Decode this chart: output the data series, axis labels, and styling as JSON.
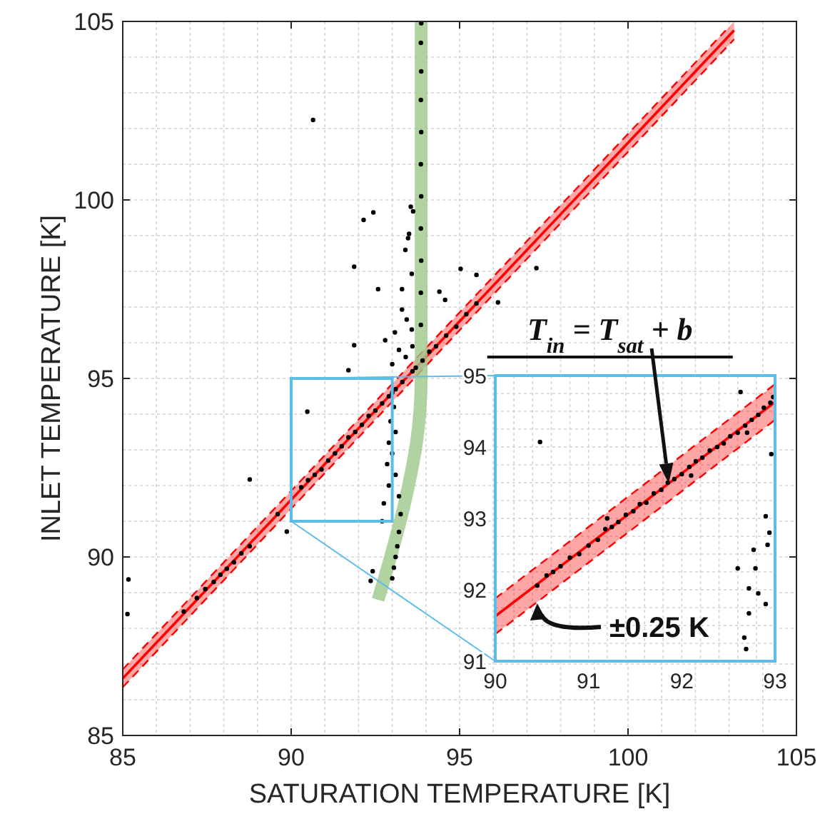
{
  "chart_data": [
    {
      "type": "scatter",
      "xlabel": "SATURATION TEMPERATURE [K]",
      "ylabel": "INLET TEMPERATURE [K]",
      "xlim": [
        85,
        105
      ],
      "ylim": [
        85,
        105
      ],
      "xticks": [
        85,
        {
          "value": 86,
          "label": null
        },
        {
          "value": 87,
          "label": null
        },
        {
          "value": 88,
          "label": null
        },
        {
          "value": 89,
          "label": null
        },
        90,
        {
          "value": 91,
          "label": null
        },
        {
          "value": 92,
          "label": null
        },
        {
          "value": 93,
          "label": null
        },
        {
          "value": 94,
          "label": null
        },
        95,
        {
          "value": 96,
          "label": null
        },
        {
          "value": 97,
          "label": null
        },
        {
          "value": 98,
          "label": null
        },
        {
          "value": 99,
          "label": null
        },
        100,
        {
          "value": 101,
          "label": null
        },
        {
          "value": 102,
          "label": null
        },
        {
          "value": 103,
          "label": null
        },
        {
          "value": 104,
          "label": null
        },
        105
      ],
      "yticks": [
        85,
        {
          "value": 86,
          "label": null
        },
        {
          "value": 87,
          "label": null
        },
        {
          "value": 88,
          "label": null
        },
        {
          "value": 89,
          "label": null
        },
        90,
        {
          "value": 91,
          "label": null
        },
        {
          "value": 92,
          "label": null
        },
        {
          "value": 93,
          "label": null
        },
        {
          "value": 94,
          "label": null
        },
        95,
        {
          "value": 96,
          "label": null
        },
        {
          "value": 97,
          "label": null
        },
        {
          "value": 98,
          "label": null
        },
        {
          "value": 99,
          "label": null
        },
        100,
        {
          "value": 101,
          "label": null
        },
        {
          "value": 102,
          "label": null
        },
        {
          "value": 103,
          "label": null
        },
        {
          "value": 104,
          "label": null
        },
        105
      ],
      "grid": true,
      "marker": "circle",
      "series": [
        {
          "type": "line",
          "color": "#ff0000",
          "marker": "none",
          "x": [
            85,
            103.15
          ],
          "values": [
            86.6,
            104.75
          ],
          "lower": [
            86.35,
            104.5
          ],
          "upper": [
            86.85,
            105
          ]
        },
        {
          "type": "line",
          "color": "#ff0000",
          "marker": "none",
          "line_style": "dashed",
          "x": [
            85,
            103.15
          ],
          "values": [
            86.35,
            104.5
          ]
        },
        {
          "type": "line",
          "color": "#ff0000",
          "marker": "none",
          "line_style": "dashed",
          "x": [
            85,
            102.9
          ],
          "values": [
            86.85,
            104.75
          ]
        },
        {
          "type": "line",
          "color": "#9dc88a",
          "marker": "none",
          "x": [
            92.58,
            92.95,
            93.29,
            93.55,
            93.72,
            93.86,
            93.86
          ],
          "values": [
            88.8,
            90.0,
            91.2,
            92.3,
            93.2,
            95.07,
            105
          ]
        },
        {
          "type": "scatter",
          "color": "#000000",
          "x": [
            86.81,
            87.2,
            87.45,
            87.7,
            87.9,
            88.09,
            88.3,
            88.52,
            88.77,
            89.6,
            90.3,
            90.5,
            90.7,
            90.9,
            91.1,
            91.3,
            91.5,
            91.7,
            91.9,
            92.1,
            92.3,
            92.5,
            92.7,
            92.9,
            93.1,
            93.3,
            93.6,
            93.9,
            94.1,
            94.3,
            94.6,
            94.9,
            95.2,
            95.5,
            97.28,
            85.17,
            85.14,
            88.77,
            89.87,
            90.48,
            90.65,
            91.7,
            91.87,
            91.87,
            92.15,
            92.44,
            92.58,
            92.36,
            92.42,
            95.03,
            95.5,
            94.4,
            94.57,
            96.14,
            93.55,
            93.62,
            93.5,
            93.47,
            93.39,
            93.58,
            93.29,
            93.29,
            93.43,
            93.58,
            92.79,
            93.08,
            93.2,
            93.4,
            93.0,
            93.6,
            93.7,
            93.85,
            93.85,
            93.86,
            93.85,
            93.86,
            93.85,
            93.86,
            93.85,
            93.86,
            93.85,
            93.86,
            93.0,
            93.05,
            92.95,
            93.1,
            92.9,
            93.0,
            92.85,
            93.1,
            92.9,
            93.2,
            92.75,
            93.25,
            92.7,
            93.2,
            93.15,
            93.1,
            93.05,
            93.0
          ],
          "values": [
            88.47,
            88.85,
            89.1,
            89.3,
            89.5,
            89.67,
            89.85,
            90.1,
            90.3,
            91.2,
            91.95,
            92.15,
            92.3,
            92.45,
            92.7,
            92.9,
            93.1,
            93.35,
            93.5,
            93.7,
            93.95,
            94.1,
            94.3,
            94.5,
            94.7,
            94.9,
            95.2,
            95.5,
            95.75,
            95.9,
            96.2,
            96.45,
            96.8,
            97.1,
            98.09,
            89.37,
            88.4,
            92.17,
            90.71,
            94.07,
            102.24,
            95.23,
            95.93,
            98.13,
            99.44,
            99.65,
            97.5,
            89.33,
            89.6,
            98.07,
            97.9,
            97.43,
            97.2,
            97.13,
            99.81,
            99.68,
            99.05,
            98.93,
            98.6,
            97.93,
            97.5,
            96.93,
            96.65,
            96.37,
            96.07,
            96.29,
            95.8,
            95.6,
            95.4,
            95.9,
            95.3,
            96.5,
            97.4,
            98.3,
            99.2,
            100.1,
            101,
            101.9,
            102.8,
            103.6,
            104.4,
            104.95,
            94.6,
            94.2,
            93.8,
            93.5,
            93.2,
            92.9,
            92.6,
            92.3,
            92.0,
            91.7,
            91.5,
            91.2,
            91.0,
            90.7,
            90.3,
            90.0,
            89.7,
            89.4
          ]
        }
      ]
    },
    {
      "type": "scatter",
      "xlim": [
        90,
        93
      ],
      "ylim": [
        91,
        95
      ],
      "xticks": [
        90,
        {
          "value": 90.2,
          "label": null
        },
        {
          "value": 90.4,
          "label": null
        },
        {
          "value": 90.6,
          "label": null
        },
        {
          "value": 90.8,
          "label": null
        },
        91,
        {
          "value": 91.2,
          "label": null
        },
        {
          "value": 91.4,
          "label": null
        },
        {
          "value": 91.6,
          "label": null
        },
        {
          "value": 91.8,
          "label": null
        },
        92,
        {
          "value": 92.2,
          "label": null
        },
        {
          "value": 92.4,
          "label": null
        },
        {
          "value": 92.6,
          "label": null
        },
        {
          "value": 92.8,
          "label": null
        },
        93
      ],
      "yticks": [
        91,
        {
          "value": 91.25,
          "label": null
        },
        {
          "value": 91.5,
          "label": null
        },
        {
          "value": 91.75,
          "label": null
        },
        92,
        {
          "value": 92.25,
          "label": null
        },
        {
          "value": 92.5,
          "label": null
        },
        {
          "value": 92.75,
          "label": null
        },
        93,
        {
          "value": 93.25,
          "label": null
        },
        {
          "value": 93.5,
          "label": null
        },
        {
          "value": 93.75,
          "label": null
        },
        94,
        {
          "value": 94.25,
          "label": null
        },
        {
          "value": 94.5,
          "label": null
        },
        {
          "value": 94.75,
          "label": null
        },
        95
      ],
      "grid": true,
      "marker": "circle",
      "annotations": [
        "T$_{in}$ = T$_{sat}$ + b",
        {
          "text": "±0.25 K",
          "x": 90.45,
          "y": 91.85
        }
      ],
      "series": [
        {
          "type": "line",
          "color": "#ff0000",
          "marker": "none",
          "x": [
            90,
            93
          ],
          "values": [
            91.63,
            94.63
          ],
          "lower": [
            91.38,
            94.38
          ],
          "upper": [
            91.88,
            94.88
          ]
        },
        {
          "type": "line",
          "color": "#ff0000",
          "marker": "none",
          "line_style": "dashed",
          "x": [
            90,
            93
          ],
          "values": [
            91.38,
            94.38
          ]
        },
        {
          "type": "line",
          "color": "#ff0000",
          "marker": "none",
          "line_style": "dashed",
          "x": [
            90,
            93
          ],
          "values": [
            91.88,
            94.88
          ]
        },
        {
          "type": "scatter",
          "color": "#000000",
          "x": [
            90.45,
            90.55,
            90.62,
            90.7,
            90.8,
            90.9,
            91.0,
            91.1,
            91.18,
            91.25,
            91.32,
            91.4,
            91.48,
            91.55,
            91.62,
            91.7,
            91.78,
            91.85,
            91.92,
            92.0,
            92.08,
            92.15,
            92.22,
            92.3,
            92.38,
            92.45,
            92.52,
            92.6,
            92.68,
            92.75,
            92.82,
            92.88,
            92.95,
            92.98,
            91.2,
            92.1,
            92.7,
            90.48,
            92.63,
            92.67,
            92.69,
            92.72,
            92.72,
            92.6,
            92.82,
            92.9,
            92.77,
            92.79,
            92.92,
            92.94,
            92.9,
            92.96
          ],
          "values": [
            92.06,
            92.2,
            92.25,
            92.33,
            92.45,
            92.5,
            92.62,
            92.7,
            92.85,
            92.88,
            92.95,
            93.05,
            93.1,
            93.2,
            93.22,
            93.35,
            93.4,
            93.5,
            93.55,
            93.62,
            93.72,
            93.8,
            93.85,
            93.95,
            94.0,
            94.05,
            94.15,
            94.2,
            94.3,
            94.38,
            94.45,
            94.55,
            94.62,
            94.7,
            93.0,
            93.6,
            94.2,
            94.07,
            94.77,
            91.33,
            91.17,
            91.67,
            92.02,
            92.3,
            91.95,
            91.8,
            92.56,
            92.3,
            92.63,
            92.8,
            93.03,
            93.9
          ]
        }
      ]
    }
  ]
}
